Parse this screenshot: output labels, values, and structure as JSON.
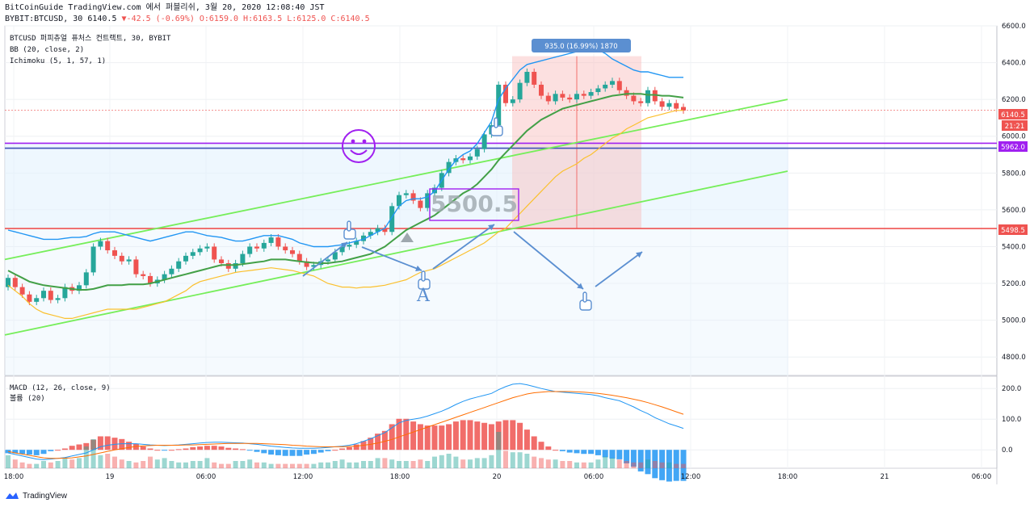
{
  "header": {
    "line1": "BitCoinGuide TradingView.com 에서 퍼블리쉬, 3월 20, 2020 12:08:40 JST",
    "line2_prefix": "BYBIT:BTCUSD, 30 6140.5",
    "change": "-42.5 (-0.69%)",
    "ohlc": "O:6159.0 H:6163.5 L:6125.0 C:6140.5"
  },
  "panel": {
    "symbol": "BTCUSD 퍼피츄얼 퓨처스 컨트랙트, 30, BYBIT",
    "bb": "BB (20, close, 2)",
    "ichimoku": "Ichimoku (5, 1, 57, 1)"
  },
  "measure_label": "935.0 (16.99%) 1870",
  "big_annotation": "5500.5",
  "letter_annotation": "A",
  "price_badges": {
    "last": "6140.5",
    "countdown": "21:21",
    "purple": "5962.0",
    "red": "5498.5"
  },
  "macd": {
    "title": "MACD (12, 26, close, 9)",
    "volume": "볼륨 (20)"
  },
  "footer": {
    "brand": "TradingView"
  },
  "colors": {
    "up": "#26a69a",
    "down": "#ef5350",
    "bb": "#2196f3",
    "ma": "#43a047",
    "signal": "#fbc02d",
    "channel": "#76ee5a",
    "purple": "#a020f0"
  },
  "chart_data": {
    "type": "candlestick",
    "price_axis": {
      "min": 4700,
      "max": 6600,
      "ticks": [
        6600,
        6400,
        6200,
        6000,
        5800,
        5600,
        5400,
        5200,
        5000,
        4800
      ]
    },
    "price_tick_labels": [
      "6600.0",
      "6400.0",
      "6200.0",
      "6000.0",
      "5800.0",
      "5600.0",
      "5400.0",
      "5200.0",
      "5000.0",
      "4800.0"
    ],
    "macd_axis": {
      "ticks": [
        200,
        100,
        0
      ],
      "labels": [
        "200.0",
        "100.0",
        "0.0"
      ]
    },
    "x_axis_labels": [
      "18:00",
      "19",
      "06:00",
      "12:00",
      "18:00",
      "20",
      "06:00",
      "12:00",
      "18:00",
      "21",
      "06:00"
    ],
    "horizontal_levels": [
      {
        "name": "resistance",
        "value": 5498.5,
        "color": "#ef5350"
      },
      {
        "name": "purple-line",
        "value": 5962.0,
        "color": "#a020f0"
      },
      {
        "name": "blue-line",
        "value": 5935.0,
        "color": "#3f51b5"
      }
    ],
    "close": [
      5230,
      5180,
      5140,
      5100,
      5120,
      5160,
      5110,
      5120,
      5180,
      5160,
      5190,
      5260,
      5400,
      5430,
      5380,
      5350,
      5320,
      5330,
      5250,
      5240,
      5200,
      5220,
      5250,
      5280,
      5320,
      5350,
      5370,
      5390,
      5400,
      5330,
      5310,
      5280,
      5310,
      5360,
      5400,
      5390,
      5420,
      5450,
      5400,
      5380,
      5360,
      5320,
      5290,
      5300,
      5320,
      5330,
      5370,
      5400,
      5410,
      5430,
      5460,
      5480,
      5500,
      5480,
      5620,
      5680,
      5690,
      5650,
      5610,
      5690,
      5720,
      5800,
      5860,
      5880,
      5870,
      5890,
      5930,
      6010,
      6060,
      6280,
      6180,
      6200,
      6290,
      6350,
      6280,
      6220,
      6190,
      6230,
      6210,
      6200,
      6230,
      6220,
      6240,
      6260,
      6280,
      6300,
      6250,
      6220,
      6190,
      6180,
      6250,
      6190,
      6160,
      6180,
      6150,
      6140
    ],
    "open": [
      5180,
      5230,
      5180,
      5140,
      5100,
      5120,
      5160,
      5110,
      5120,
      5180,
      5160,
      5190,
      5260,
      5400,
      5430,
      5380,
      5350,
      5320,
      5330,
      5250,
      5240,
      5200,
      5220,
      5250,
      5280,
      5320,
      5350,
      5370,
      5390,
      5400,
      5330,
      5310,
      5280,
      5310,
      5360,
      5400,
      5390,
      5420,
      5450,
      5400,
      5380,
      5360,
      5320,
      5290,
      5300,
      5320,
      5330,
      5370,
      5400,
      5410,
      5430,
      5460,
      5480,
      5500,
      5480,
      5620,
      5680,
      5690,
      5650,
      5610,
      5690,
      5720,
      5800,
      5860,
      5880,
      5870,
      5890,
      5930,
      6010,
      6060,
      6280,
      6180,
      6200,
      6290,
      6350,
      6280,
      6220,
      6190,
      6230,
      6210,
      6200,
      6230,
      6220,
      6240,
      6260,
      6280,
      6300,
      6250,
      6220,
      6190,
      6180,
      6250,
      6190,
      6160,
      6180,
      6159
    ],
    "bb_upper": [
      5490,
      5480,
      5470,
      5460,
      5450,
      5440,
      5440,
      5440,
      5445,
      5450,
      5450,
      5455,
      5470,
      5480,
      5480,
      5480,
      5470,
      5460,
      5450,
      5440,
      5430,
      5440,
      5450,
      5460,
      5470,
      5480,
      5480,
      5470,
      5460,
      5455,
      5450,
      5440,
      5430,
      5430,
      5440,
      5450,
      5460,
      5460,
      5460,
      5450,
      5440,
      5420,
      5410,
      5400,
      5400,
      5400,
      5405,
      5410,
      5420,
      5430,
      5440,
      5460,
      5480,
      5500,
      5560,
      5620,
      5650,
      5660,
      5660,
      5670,
      5700,
      5760,
      5820,
      5870,
      5900,
      5920,
      5960,
      6020,
      6080,
      6200,
      6260,
      6310,
      6360,
      6390,
      6400,
      6410,
      6420,
      6430,
      6440,
      6450,
      6460,
      6460,
      6470,
      6470,
      6450,
      6420,
      6400,
      6380,
      6360,
      6350,
      6350,
      6340,
      6330,
      6320,
      6320,
      6320
    ],
    "ma": [
      5270,
      5250,
      5230,
      5210,
      5200,
      5190,
      5185,
      5180,
      5175,
      5170,
      5165,
      5165,
      5170,
      5180,
      5190,
      5190,
      5190,
      5195,
      5195,
      5195,
      5200,
      5210,
      5220,
      5230,
      5240,
      5250,
      5260,
      5270,
      5280,
      5290,
      5300,
      5300,
      5300,
      5305,
      5310,
      5315,
      5320,
      5330,
      5330,
      5330,
      5325,
      5320,
      5315,
      5312,
      5310,
      5310,
      5315,
      5320,
      5330,
      5340,
      5350,
      5360,
      5380,
      5400,
      5430,
      5460,
      5490,
      5510,
      5530,
      5550,
      5570,
      5600,
      5630,
      5660,
      5690,
      5710,
      5740,
      5780,
      5820,
      5870,
      5910,
      5950,
      5990,
      6030,
      6060,
      6090,
      6110,
      6130,
      6150,
      6160,
      6170,
      6180,
      6190,
      6200,
      6210,
      6220,
      6225,
      6230,
      6230,
      6230,
      6225,
      6225,
      6220,
      6220,
      6215,
      6210
    ],
    "signal_line": [
      5190,
      5160,
      5130,
      5090,
      5060,
      5040,
      5030,
      5020,
      5010,
      5010,
      5020,
      5030,
      5040,
      5050,
      5060,
      5060,
      5060,
      5060,
      5060,
      5070,
      5080,
      5090,
      5100,
      5120,
      5140,
      5160,
      5190,
      5210,
      5220,
      5230,
      5240,
      5250,
      5260,
      5265,
      5270,
      5275,
      5280,
      5285,
      5280,
      5275,
      5270,
      5260,
      5250,
      5240,
      5220,
      5200,
      5190,
      5180,
      5180,
      5175,
      5180,
      5180,
      5185,
      5190,
      5200,
      5210,
      5220,
      5240,
      5260,
      5270,
      5280,
      5300,
      5320,
      5340,
      5360,
      5380,
      5400,
      5420,
      5450,
      5480,
      5500,
      5540,
      5580,
      5620,
      5660,
      5700,
      5740,
      5780,
      5810,
      5830,
      5850,
      5880,
      5900,
      5930,
      5960,
      5990,
      6010,
      6040,
      6060,
      6080,
      6100,
      6110,
      6120,
      6130,
      6140,
      6140
    ],
    "macd_line": [
      -10,
      -15,
      -20,
      -25,
      -30,
      -32,
      -30,
      -28,
      -25,
      -20,
      -15,
      -10,
      0,
      10,
      15,
      18,
      20,
      20,
      20,
      18,
      16,
      15,
      14,
      15,
      16,
      18,
      20,
      22,
      24,
      25,
      25,
      24,
      23,
      22,
      20,
      18,
      15,
      12,
      10,
      8,
      6,
      5,
      5,
      5,
      6,
      8,
      10,
      12,
      15,
      20,
      28,
      36,
      46,
      56,
      72,
      88,
      96,
      100,
      104,
      110,
      118,
      126,
      136,
      148,
      158,
      166,
      172,
      178,
      184,
      196,
      206,
      214,
      216,
      212,
      206,
      200,
      195,
      190,
      188,
      186,
      184,
      182,
      180,
      176,
      170,
      165,
      160,
      150,
      140,
      128,
      118,
      105,
      95,
      85,
      78,
      70
    ],
    "signal_macd": [
      -5,
      -10,
      -14,
      -18,
      -22,
      -26,
      -28,
      -28,
      -27,
      -26,
      -23,
      -20,
      -15,
      -10,
      -5,
      0,
      4,
      8,
      11,
      13,
      14,
      15,
      15,
      15,
      15,
      16,
      16,
      17,
      18,
      19,
      20,
      21,
      21,
      21,
      21,
      21,
      20,
      19,
      18,
      17,
      15,
      14,
      12,
      11,
      10,
      10,
      10,
      10,
      11,
      12,
      15,
      18,
      22,
      28,
      34,
      42,
      50,
      58,
      66,
      74,
      82,
      90,
      98,
      106,
      114,
      122,
      130,
      138,
      146,
      154,
      162,
      170,
      176,
      182,
      186,
      188,
      190,
      190,
      190,
      190,
      189,
      188,
      186,
      184,
      181,
      178,
      174,
      170,
      165,
      160,
      154,
      147,
      140,
      132,
      124,
      116
    ],
    "volume": [
      18,
      12,
      8,
      6,
      6,
      10,
      8,
      10,
      14,
      12,
      14,
      30,
      40,
      18,
      20,
      16,
      12,
      10,
      8,
      10,
      16,
      12,
      14,
      10,
      8,
      8,
      10,
      10,
      14,
      8,
      6,
      6,
      10,
      10,
      12,
      8,
      8,
      6,
      6,
      6,
      6,
      6,
      6,
      6,
      8,
      8,
      10,
      12,
      8,
      8,
      10,
      10,
      14,
      14,
      12,
      10,
      10,
      10,
      12,
      10,
      16,
      18,
      20,
      16,
      12,
      12,
      14,
      14,
      18,
      50,
      24,
      22,
      22,
      20,
      16,
      14,
      12,
      12,
      10,
      10,
      8,
      8,
      8,
      12,
      16,
      14,
      12,
      10,
      8,
      8,
      12,
      10,
      8,
      8,
      6,
      6
    ]
  }
}
